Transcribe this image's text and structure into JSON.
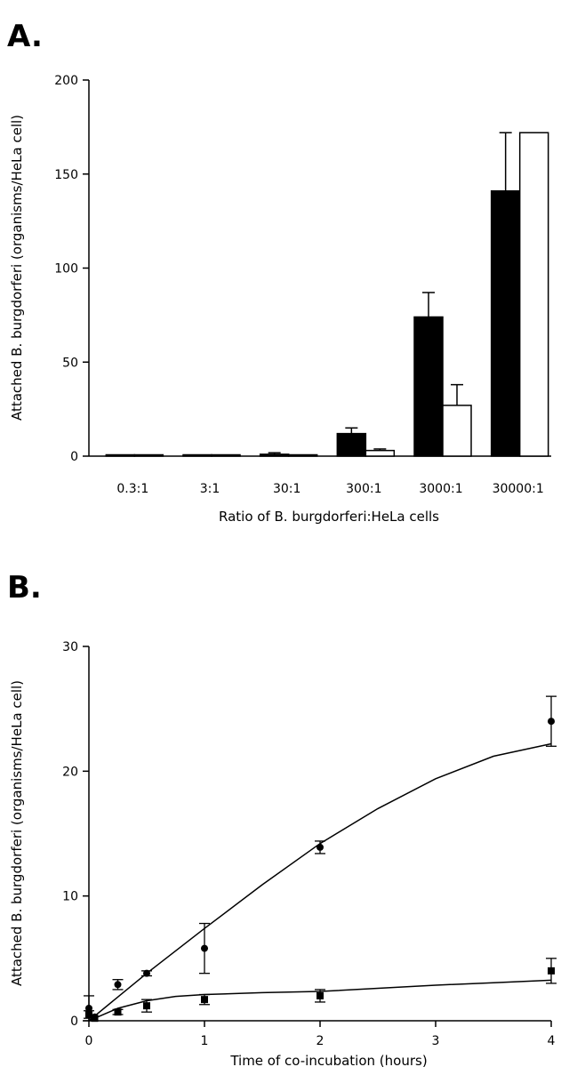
{
  "chart_data": [
    {
      "panel_label": "A.",
      "type": "bar",
      "xlabel": "Ratio of B. burgdorferi:HeLa cells",
      "ylabel": "Attached B. burgdorferi (organisms/HeLa cell)",
      "ylim": [
        0,
        200
      ],
      "yticks": [
        "0",
        "50",
        "100",
        "150",
        "200"
      ],
      "categories": [
        "0.3:1",
        "3:1",
        "30:1",
        "300:1",
        "3000:1",
        "30000:1"
      ],
      "series": [
        {
          "fill": "#000000",
          "values": [
            0.2,
            0.5,
            1,
            12,
            74,
            141
          ],
          "errors": [
            0,
            0,
            0.8,
            3,
            13,
            31
          ]
        },
        {
          "fill": "#ffffff",
          "values": [
            0,
            0,
            0.2,
            3,
            27,
            172
          ],
          "errors": [
            0,
            0,
            0,
            0.8,
            11,
            0
          ]
        }
      ]
    },
    {
      "panel_label": "B.",
      "type": "scatter",
      "xlabel": "Time of co-incubation (hours)",
      "ylabel": "Attached B. burgdorferi (organisms/HeLa cell)",
      "xlim": [
        0,
        4
      ],
      "ylim": [
        0,
        30
      ],
      "xticks": [
        "0",
        "1",
        "2",
        "3",
        "4"
      ],
      "yticks": [
        "0",
        "10",
        "20",
        "30"
      ],
      "series": [
        {
          "marker": "circle",
          "points": [
            {
              "x": 0,
              "y": 1.0,
              "err": 1.0
            },
            {
              "x": 0.05,
              "y": 0.3,
              "err": 0
            },
            {
              "x": 0.25,
              "y": 2.9,
              "err": 0.4
            },
            {
              "x": 0.5,
              "y": 3.8,
              "err": 0.2
            },
            {
              "x": 1,
              "y": 5.8,
              "err": 2.0
            },
            {
              "x": 2,
              "y": 13.9,
              "err": 0.5
            },
            {
              "x": 4,
              "y": 24.0,
              "err": 2.0
            }
          ],
          "fit": [
            [
              0,
              0
            ],
            [
              0.25,
              1.9
            ],
            [
              0.5,
              3.8
            ],
            [
              1,
              7.4
            ],
            [
              1.5,
              10.9
            ],
            [
              2,
              14.2
            ],
            [
              2.5,
              17.0
            ],
            [
              3,
              19.4
            ],
            [
              3.5,
              21.2
            ],
            [
              4,
              22.2
            ]
          ]
        },
        {
          "marker": "square",
          "points": [
            {
              "x": 0,
              "y": 0.5,
              "err": 0.3
            },
            {
              "x": 0.05,
              "y": 0.2,
              "err": 0
            },
            {
              "x": 0.25,
              "y": 0.7,
              "err": 0.2
            },
            {
              "x": 0.5,
              "y": 1.2,
              "err": 0.5
            },
            {
              "x": 1,
              "y": 1.7,
              "err": 0.4
            },
            {
              "x": 2,
              "y": 2.0,
              "err": 0.5
            },
            {
              "x": 4,
              "y": 4.0,
              "err": 1.0
            }
          ],
          "fit": [
            [
              0,
              0
            ],
            [
              0.25,
              1.0
            ],
            [
              0.5,
              1.6
            ],
            [
              0.75,
              1.95
            ],
            [
              1,
              2.1
            ],
            [
              1.5,
              2.25
            ],
            [
              2,
              2.35
            ],
            [
              2.5,
              2.6
            ],
            [
              3,
              2.85
            ],
            [
              3.5,
              3.05
            ],
            [
              4,
              3.25
            ]
          ]
        }
      ]
    }
  ]
}
